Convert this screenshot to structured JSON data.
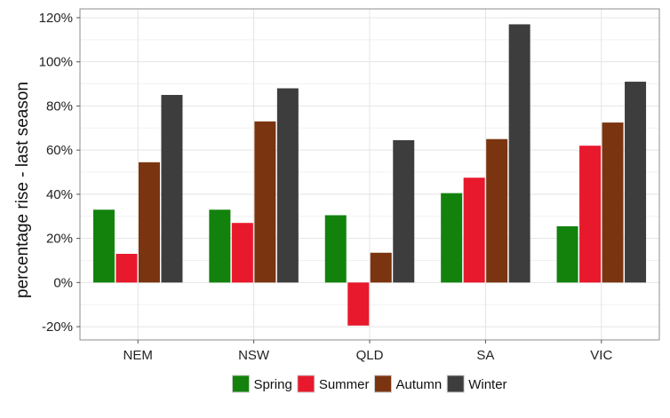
{
  "chart_data": {
    "type": "bar",
    "title": "",
    "xlabel": "",
    "ylabel": "percentage rise - last season",
    "categories": [
      "NEM",
      "NSW",
      "QLD",
      "SA",
      "VIC"
    ],
    "series": [
      {
        "name": "Spring",
        "color": "#12820d",
        "values": [
          33,
          33,
          30.5,
          40.5,
          25.5
        ]
      },
      {
        "name": "Summer",
        "color": "#e8192c",
        "values": [
          13,
          27,
          -19.5,
          47.5,
          62
        ]
      },
      {
        "name": "Autumn",
        "color": "#7a3510",
        "values": [
          54.5,
          73,
          13.5,
          65,
          72.5
        ]
      },
      {
        "name": "Winter",
        "color": "#3d3d3d",
        "values": [
          85,
          88,
          64.5,
          117,
          91
        ]
      }
    ],
    "ylim": [
      -26,
      124
    ],
    "yticks": [
      -20,
      0,
      20,
      40,
      60,
      80,
      100,
      120
    ],
    "ytick_labels": [
      "-20%",
      "0%",
      "20%",
      "40%",
      "60%",
      "80%",
      "100%",
      "120%"
    ],
    "grid": true,
    "legend_position": "bottom"
  }
}
